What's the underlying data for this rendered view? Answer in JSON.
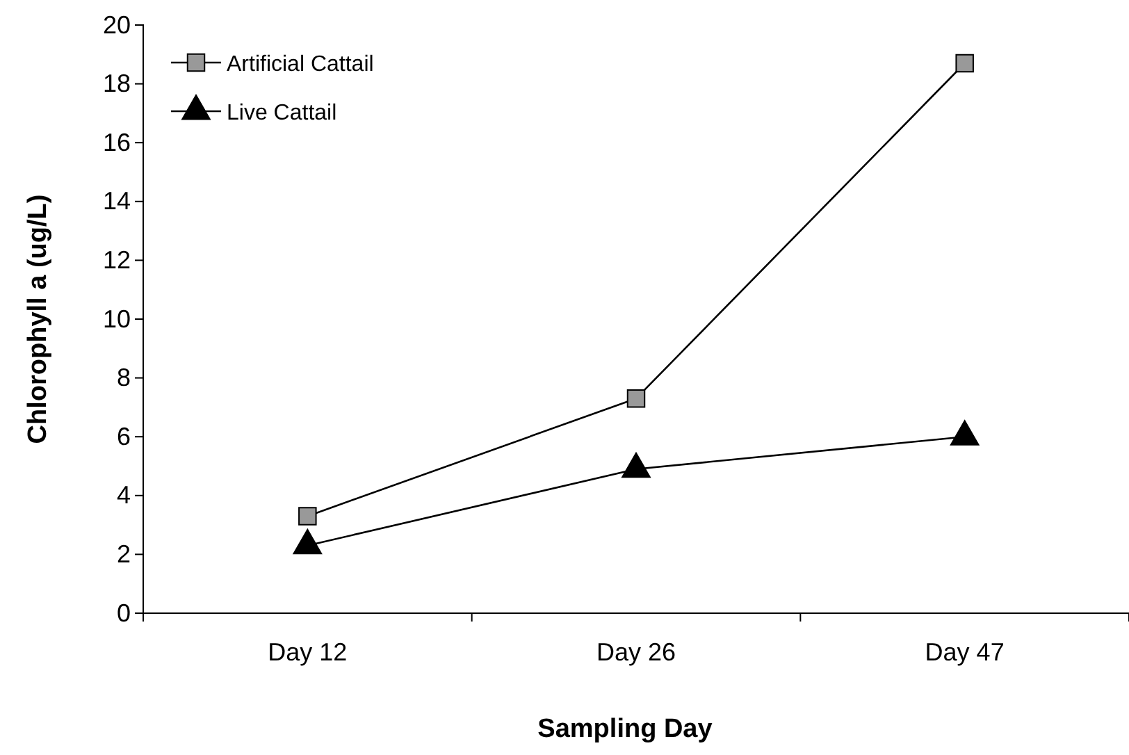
{
  "chart_data": {
    "type": "line",
    "xlabel": "Sampling Day",
    "ylabel": "Chlorophyll a (ug/L)",
    "categories": [
      "Day 12",
      "Day 26",
      "Day 47"
    ],
    "series": [
      {
        "name": "Artificial Cattail",
        "color": "#999999",
        "marker": "square",
        "values": [
          3.3,
          7.3,
          18.7
        ]
      },
      {
        "name": "Live Cattail",
        "color": "#000000",
        "marker": "triangle",
        "values": [
          2.3,
          4.9,
          6.0
        ]
      }
    ],
    "ylim": [
      0,
      20
    ],
    "yticks": [
      0,
      2,
      4,
      6,
      8,
      10,
      12,
      14,
      16,
      18,
      20
    ],
    "grid": false,
    "legend": "top left",
    "line_style": "solid"
  }
}
